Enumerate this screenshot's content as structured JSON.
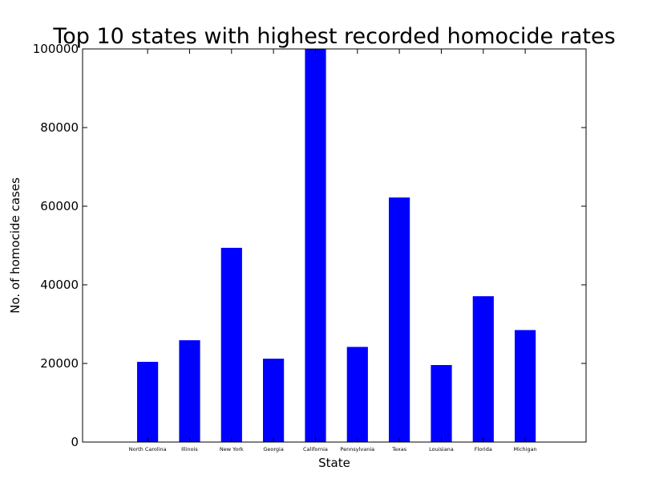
{
  "chart_data": {
    "type": "bar",
    "title": "Top 10 states with highest recorded homocide rates",
    "xlabel": "State",
    "ylabel": "No. of homocide cases",
    "categories": [
      "North Carolina",
      "Illinois",
      "New York",
      "Georgia",
      "California",
      "Pennsylvania",
      "Texas",
      "Louisiana",
      "Florida",
      "Michigan"
    ],
    "values": [
      20400,
      25900,
      49400,
      21200,
      100000,
      24200,
      62200,
      19600,
      37100,
      28500
    ],
    "ylim": [
      0,
      100000
    ],
    "yticks": [
      0,
      20000,
      40000,
      60000,
      80000,
      100000
    ],
    "ytick_labels": [
      "0",
      "20000",
      "40000",
      "60000",
      "80000",
      "100000"
    ],
    "bar_color": "#0000ff",
    "grid": false
  }
}
